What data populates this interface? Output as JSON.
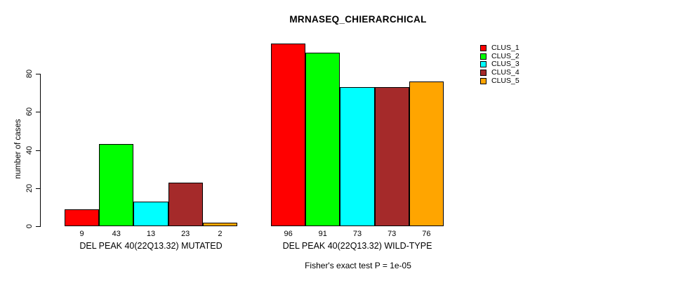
{
  "chart_data": {
    "type": "bar",
    "title": "MRNASEQ_CHIERARCHICAL",
    "ylabel": "number of cases",
    "xlabel": "",
    "yticks": [
      0,
      20,
      40,
      60,
      80
    ],
    "ylim": [
      0,
      100
    ],
    "grid": false,
    "categories": [
      "CLUS_1",
      "CLUS_2",
      "CLUS_3",
      "CLUS_4",
      "CLUS_5"
    ],
    "colors": [
      "#FF0000",
      "#00FF00",
      "#00FFFF",
      "#A52A2A",
      "#FFA500"
    ],
    "series": [
      {
        "name": "DEL PEAK 40(22Q13.32) MUTATED",
        "values": [
          9,
          43,
          13,
          23,
          2
        ]
      },
      {
        "name": "DEL PEAK 40(22Q13.32) WILD-TYPE",
        "values": [
          96,
          91,
          73,
          73,
          76
        ]
      }
    ],
    "legend": {
      "position": "top-right",
      "entries": [
        {
          "label": "CLUS_1",
          "color": "#FF0000"
        },
        {
          "label": "CLUS_2",
          "color": "#00FF00"
        },
        {
          "label": "CLUS_3",
          "color": "#00FFFF"
        },
        {
          "label": "CLUS_4",
          "color": "#A52A2A"
        },
        {
          "label": "CLUS_5",
          "color": "#FFA500"
        }
      ]
    },
    "footnote": "Fisher's exact test P = 1e-05"
  }
}
